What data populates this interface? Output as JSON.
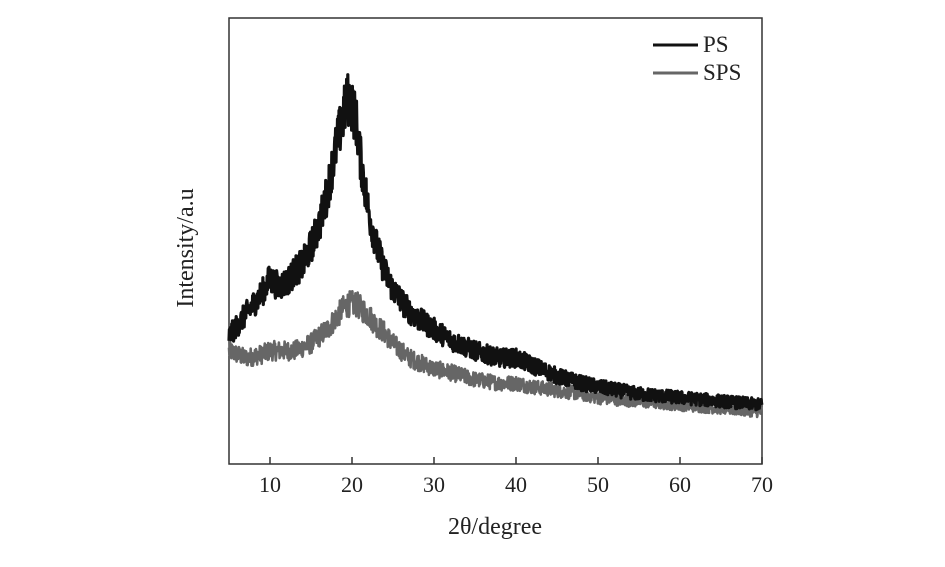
{
  "chart_data": {
    "type": "line",
    "title": "",
    "xlabel": "2θ/degree",
    "ylabel": "Intensity/a.u",
    "xlim": [
      5,
      70
    ],
    "ylim": [
      0,
      100
    ],
    "x_ticks": [
      "10",
      "20",
      "30",
      "40",
      "50",
      "60",
      "70"
    ],
    "y_ticks_shown": false,
    "grid": false,
    "legend_position": "top-right",
    "x": [
      5,
      7,
      9,
      10,
      11,
      12,
      13,
      14,
      15,
      16,
      17,
      18,
      19,
      19.5,
      20,
      20.5,
      21,
      22,
      23,
      24,
      25,
      26,
      27,
      28,
      30,
      32,
      35,
      38,
      40,
      42,
      45,
      48,
      50,
      55,
      60,
      65,
      70
    ],
    "series": [
      {
        "name": "PS",
        "color": "#111111",
        "values": [
          26,
          32,
          38,
          42,
          40,
          41,
          44,
          46,
          51,
          57,
          66,
          78,
          88,
          92,
          90,
          86,
          76,
          61,
          51,
          44,
          39,
          36,
          33,
          31,
          28,
          25,
          22,
          20,
          20,
          18,
          15,
          13,
          12,
          10,
          9,
          8,
          7
        ]
      },
      {
        "name": "SPS",
        "color": "#666666",
        "values": [
          22,
          20,
          21,
          22,
          22,
          22,
          22,
          23,
          24,
          26,
          28,
          31,
          34,
          35,
          35,
          35,
          34,
          32,
          29,
          27,
          24,
          22,
          20,
          19,
          17,
          16,
          14,
          13,
          13,
          12,
          11,
          10,
          9,
          8,
          7,
          6,
          5
        ]
      }
    ]
  }
}
